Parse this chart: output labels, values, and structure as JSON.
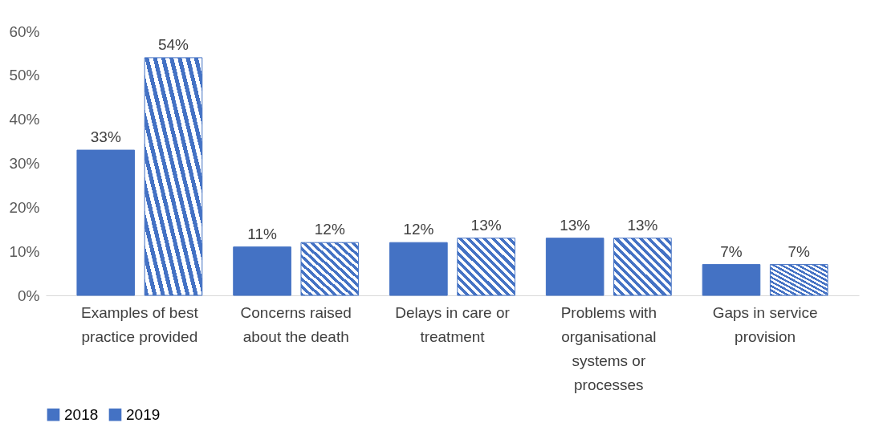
{
  "chart_data": {
    "type": "bar",
    "categories": [
      "Examples of best practice provided",
      "Concerns raised about the death",
      "Delays in care or treatment",
      "Problems with organisational systems or processes",
      "Gaps in service provision"
    ],
    "series": [
      {
        "name": "2018",
        "color": "#4472c4",
        "values": [
          33,
          11,
          12,
          13,
          7
        ],
        "value_labels": [
          "33%",
          "11%",
          "12%",
          "13%",
          "7%"
        ]
      },
      {
        "name": "2019",
        "color": "#4472c4",
        "values": [
          54,
          12,
          13,
          13,
          7
        ],
        "value_labels": [
          "54%",
          "12%",
          "13%",
          "13%",
          "7%"
        ]
      }
    ],
    "ylim": [
      0,
      60
    ],
    "yticks": [
      {
        "value": 0,
        "label": "0%"
      },
      {
        "value": 10,
        "label": "10%"
      },
      {
        "value": 20,
        "label": "20%"
      },
      {
        "value": 30,
        "label": "30%"
      },
      {
        "value": 40,
        "label": "40%"
      },
      {
        "value": 50,
        "label": "50%"
      },
      {
        "value": 60,
        "label": "60%"
      }
    ],
    "grid": false,
    "legend": "bottom"
  }
}
